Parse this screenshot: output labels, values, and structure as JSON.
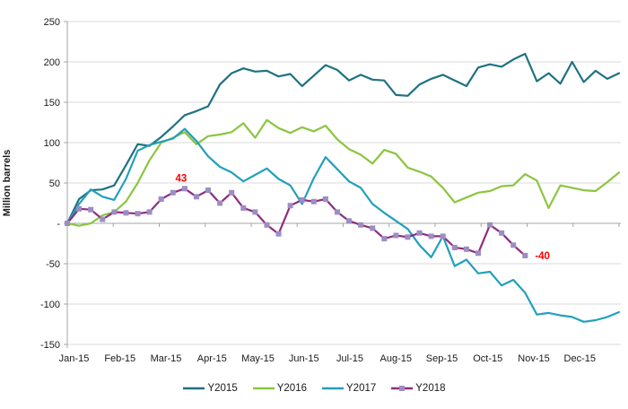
{
  "chart_data": {
    "type": "line",
    "title": "",
    "ylabel": "Million barrels",
    "ylim": [
      -150,
      250
    ],
    "ytick_step": 50,
    "ytick_labels": [
      "250",
      "200",
      "150",
      "100",
      "50",
      "-",
      "-50",
      "-100",
      "-150"
    ],
    "categories": [
      "Jan-15",
      "Feb-15",
      "Mar-15",
      "Apr-15",
      "May-15",
      "Jun-15",
      "Jul-15",
      "Aug-15",
      "Sep-15",
      "Oct-15",
      "Nov-15",
      "Dec-15"
    ],
    "points_per_month": 4,
    "grid": true,
    "legend_position": "bottom",
    "gridline_color": "#d9d9d9",
    "axis_color": "#a6a6a6",
    "text_color": "#1a1a1a",
    "annotation_color": "#ff0000",
    "series": [
      {
        "name": "Y2015",
        "color": "#1f7282",
        "marker": false,
        "values": [
          0,
          30,
          41,
          42,
          47,
          72,
          98,
          96,
          107,
          120,
          134,
          139,
          145,
          172,
          186,
          192,
          188,
          189,
          182,
          185,
          170,
          183,
          196,
          190,
          177,
          184,
          178,
          177,
          159,
          158,
          172,
          179,
          184,
          177,
          170,
          193,
          197,
          194,
          203,
          210,
          176,
          186,
          173,
          200,
          175,
          189,
          179,
          186
        ]
      },
      {
        "name": "Y2016",
        "color": "#8cc540",
        "marker": false,
        "values": [
          0,
          -3,
          0,
          10,
          14,
          27,
          50,
          78,
          100,
          106,
          113,
          98,
          108,
          110,
          113,
          124,
          106,
          128,
          118,
          112,
          119,
          114,
          121,
          104,
          92,
          85,
          74,
          91,
          86,
          69,
          64,
          58,
          44,
          26,
          32,
          38,
          40,
          46,
          47,
          61,
          53,
          19,
          47,
          44,
          41,
          40,
          51,
          63
        ]
      },
      {
        "name": "Y2017",
        "color": "#22a0bc",
        "marker": false,
        "values": [
          0,
          24,
          42,
          33,
          29,
          55,
          90,
          97,
          101,
          105,
          117,
          102,
          83,
          70,
          63,
          52,
          60,
          68,
          55,
          47,
          24,
          56,
          82,
          67,
          52,
          44,
          24,
          13,
          3,
          -7,
          -27,
          -42,
          -16,
          -53,
          -45,
          -62,
          -60,
          -77,
          -70,
          -86,
          -113,
          -111,
          -114,
          -116,
          -122,
          -120,
          -116,
          -110
        ]
      },
      {
        "name": "Y2018",
        "color": "#8e2e7e",
        "marker": true,
        "marker_color": "#9c8dc3",
        "values": [
          0,
          18,
          17,
          5,
          14,
          13,
          12,
          14,
          30,
          38,
          43,
          33,
          41,
          25,
          38,
          19,
          14,
          -2,
          -13,
          22,
          29,
          27,
          30,
          14,
          3,
          -2,
          -6,
          -19,
          -15,
          -17,
          -12,
          -16,
          -16,
          -30,
          -32,
          -37,
          -2,
          -12,
          -27,
          -40
        ]
      }
    ],
    "annotations": [
      {
        "text": "43",
        "series": "Y2018",
        "index": 10,
        "position": "above"
      },
      {
        "text": "-40",
        "series": "Y2018",
        "index": 39,
        "position": "right"
      }
    ]
  }
}
